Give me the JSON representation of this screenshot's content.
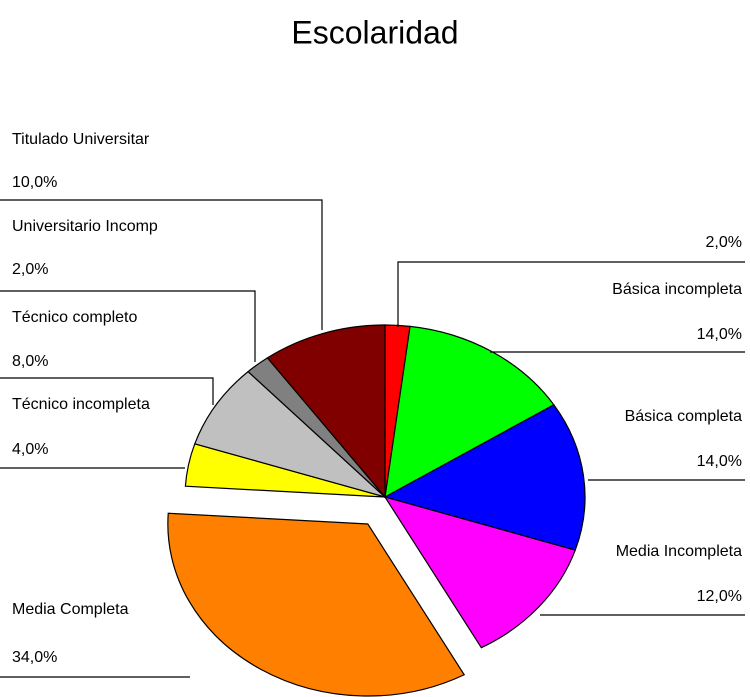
{
  "chart_data": {
    "type": "pie",
    "title": "Escolaridad",
    "categories": [
      null,
      "Básica incompleta",
      "Básica completa",
      "Media Incompleta",
      "Media Completa",
      "Técnico incompleta",
      "Técnico completo",
      "Universitario Incomp",
      "Titulado Universitar"
    ],
    "values": [
      2,
      14,
      14,
      12,
      34,
      4,
      8,
      2,
      10
    ],
    "value_labels": [
      "2,0%",
      "14,0%",
      "14,0%",
      "12,0%",
      "34,0%",
      "4,0%",
      "8,0%",
      "2,0%",
      "10,0%"
    ],
    "colors": [
      "#ff0000",
      "#00ff00",
      "#0000ff",
      "#ff00ff",
      "#ff8000",
      "#ffff00",
      "#c0c0c0",
      "#808080",
      "#800000"
    ]
  }
}
